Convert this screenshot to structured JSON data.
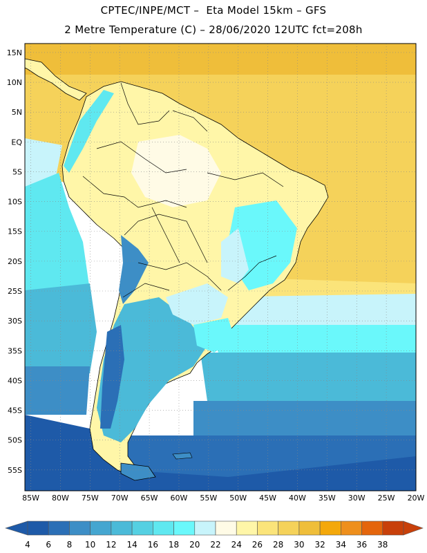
{
  "title_line1": "CPTEC/INPE/MCT –  Eta Model 15km – GFS",
  "title_line2": "2 Metre Temperature (C) – 28/06/2020 12UTC fct=208h",
  "axes": {
    "lon_labels": [
      "85W",
      "80W",
      "75W",
      "70W",
      "65W",
      "60W",
      "55W",
      "50W",
      "45W",
      "40W",
      "35W",
      "30W",
      "25W",
      "20W"
    ],
    "lat_labels": [
      "15N",
      "10N",
      "5N",
      "EQ",
      "5S",
      "10S",
      "15S",
      "20S",
      "25S",
      "30S",
      "35S",
      "40S",
      "45S",
      "50S",
      "55S"
    ],
    "lon_range": [
      -86,
      -20
    ],
    "lat_range": [
      -58.5,
      16.5
    ]
  },
  "colorbar": {
    "labels": [
      "4",
      "6",
      "8",
      "10",
      "12",
      "14",
      "16",
      "18",
      "20",
      "22",
      "24",
      "26",
      "28",
      "30",
      "32",
      "34",
      "36",
      "38"
    ],
    "colors": [
      "#1e5aa8",
      "#2b6fb6",
      "#3d8ec6",
      "#45a6d0",
      "#4bbad8",
      "#55d0e2",
      "#5fe8f0",
      "#6af8fb",
      "#c8f4fb",
      "#fffbe6",
      "#fff6a8",
      "#fbe47a",
      "#f5d25a",
      "#efbe3a",
      "#f4a80a",
      "#ee8f1c",
      "#e4650c",
      "#c8400a"
    ]
  },
  "map_colors": {
    "warm": "#f5d25a",
    "hot": "#efbe3a",
    "mild": "#fbe47a",
    "light": "#fff6a8",
    "cool_land": "#fffbe6",
    "pale": "#c8f4fb",
    "cyan": "#5fe8f0",
    "teal": "#4bbad8",
    "blue": "#3d8ec6",
    "deep": "#2b6fb6",
    "deepest": "#1e5aa8",
    "border": "#000000"
  }
}
